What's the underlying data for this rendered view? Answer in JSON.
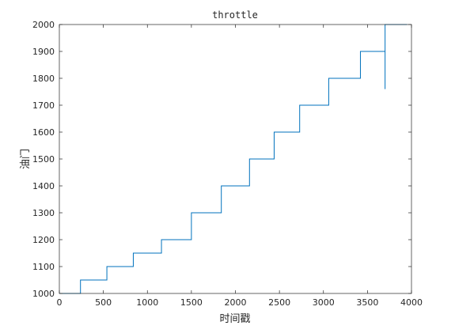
{
  "chart_data": {
    "type": "line",
    "title": "throttle",
    "xlabel": "时间戳",
    "ylabel": "油门",
    "xlim": [
      0,
      4000
    ],
    "ylim": [
      1000,
      2000
    ],
    "xticks": [
      0,
      500,
      1000,
      1500,
      2000,
      2500,
      3000,
      3500,
      4000
    ],
    "yticks": [
      1000,
      1100,
      1200,
      1300,
      1400,
      1500,
      1600,
      1700,
      1800,
      1900,
      2000
    ],
    "grid": false,
    "series": [
      {
        "color": "#0072bd",
        "x": [
          0,
          240,
          240,
          540,
          540,
          840,
          840,
          1160,
          1160,
          1500,
          1500,
          1840,
          1840,
          2160,
          2160,
          2440,
          2440,
          2730,
          2730,
          3060,
          3060,
          3420,
          3420,
          3700,
          3700,
          3700,
          3700,
          3950
        ],
        "y": [
          1000,
          1000,
          1050,
          1050,
          1100,
          1100,
          1150,
          1150,
          1200,
          1200,
          1300,
          1300,
          1400,
          1400,
          1500,
          1500,
          1600,
          1600,
          1700,
          1700,
          1800,
          1800,
          1900,
          1900,
          1760,
          2000,
          2000,
          2000
        ]
      }
    ]
  }
}
